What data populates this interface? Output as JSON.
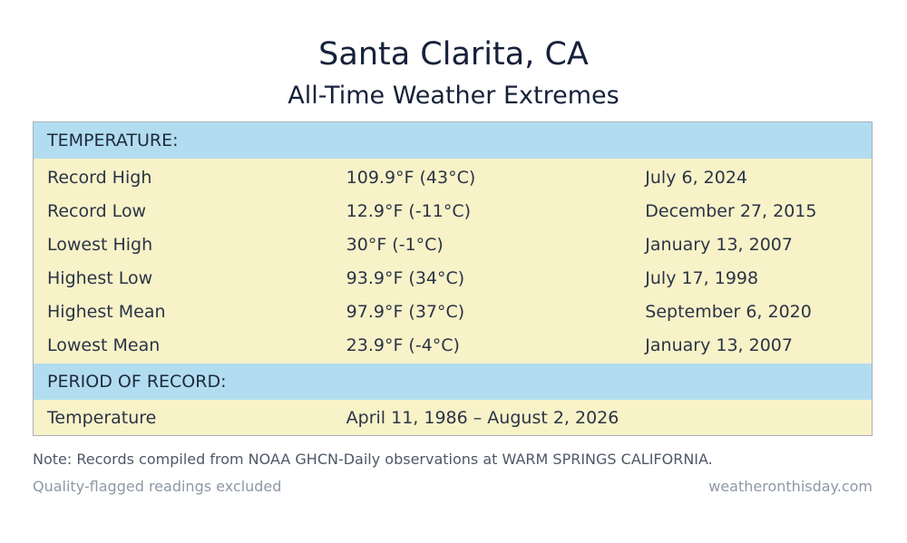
{
  "header": {
    "title": "Santa Clarita, CA",
    "subtitle": "All-Time Weather Extremes"
  },
  "sections": [
    {
      "heading": "TEMPERATURE:",
      "rows": [
        {
          "label": "Record High",
          "value": "109.9°F (43°C)",
          "date": "July 6, 2024"
        },
        {
          "label": "Record Low",
          "value": "12.9°F (-11°C)",
          "date": "December 27, 2015"
        },
        {
          "label": "Lowest High",
          "value": "30°F (-1°C)",
          "date": "January 13, 2007"
        },
        {
          "label": "Highest Low",
          "value": "93.9°F (34°C)",
          "date": "July 17, 1998"
        },
        {
          "label": "Highest Mean",
          "value": "97.9°F (37°C)",
          "date": "September 6, 2020"
        },
        {
          "label": "Lowest Mean",
          "value": "23.9°F (-4°C)",
          "date": "January 13, 2007"
        }
      ]
    },
    {
      "heading": "PERIOD OF RECORD:",
      "rows": [
        {
          "label": "Temperature",
          "value": "April 11, 1986 – August 2, 2026",
          "date": ""
        }
      ]
    }
  ],
  "footer": {
    "note": "Note: Records compiled from NOAA GHCN-Daily observations at WARM SPRINGS CALIFORNIA.",
    "quality": "Quality-flagged readings excluded",
    "source": "weatheronthisday.com"
  },
  "colors": {
    "section_header_bg": "#b2ddf0",
    "data_bg": "#f8f2c8",
    "title_text": "#16213a",
    "muted_text": "#8e98a6"
  }
}
